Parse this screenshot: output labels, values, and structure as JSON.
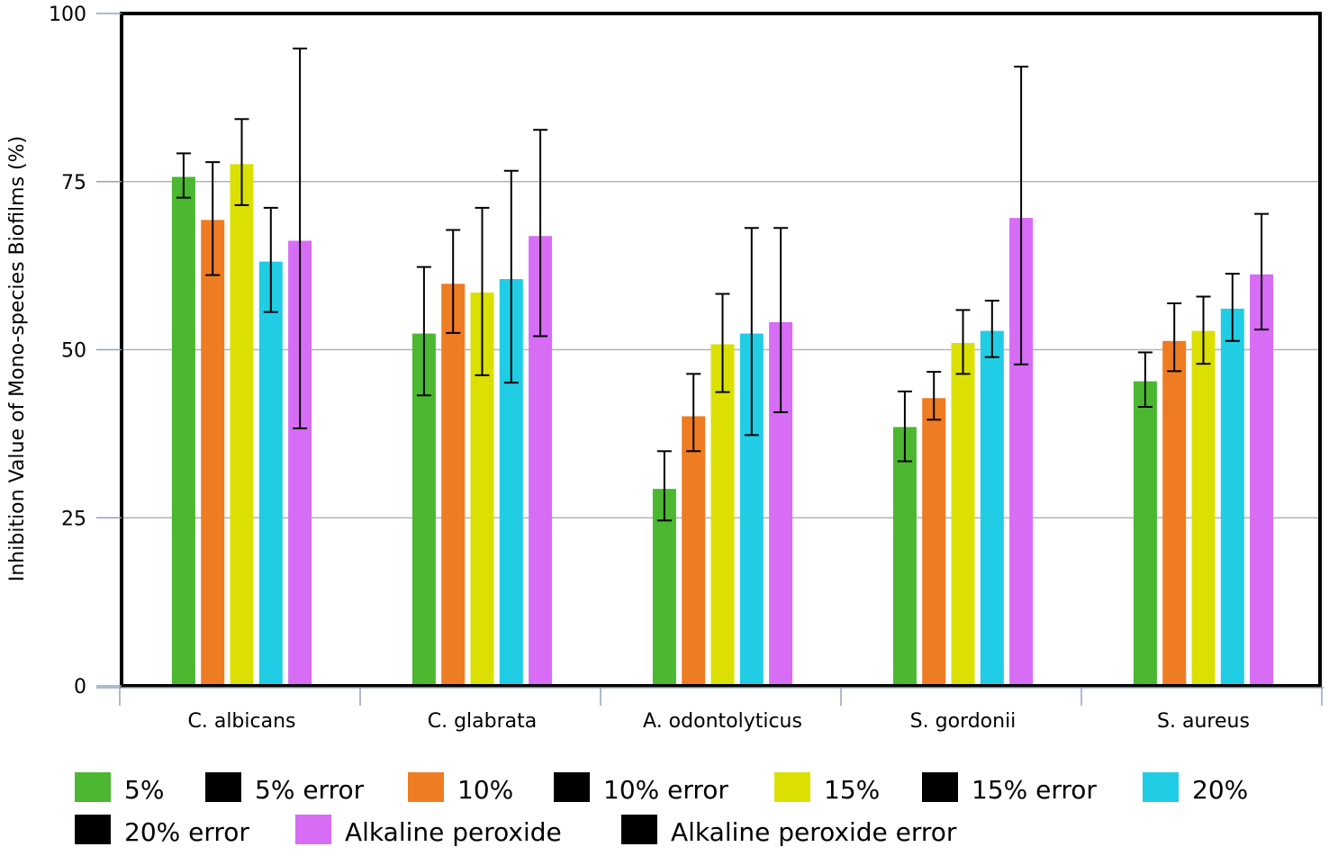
{
  "chart_data": {
    "type": "bar",
    "title": "",
    "xlabel": "",
    "ylabel": "Inhibition Value of Mono-species Biofilms (%)",
    "ylim": [
      0,
      100
    ],
    "yticks": [
      "0",
      "25",
      "50",
      "75",
      "100"
    ],
    "grid": "horizontal",
    "legend_position": "bottom",
    "categories": [
      "C. albicans",
      "C. glabrata",
      "A. odontolyticus",
      "S. gordonii",
      "S. aureus"
    ],
    "series": [
      {
        "name": "5%",
        "color": "#4CB731",
        "values": [
          75.7,
          52.4,
          29.3,
          38.5,
          45.3
        ],
        "error_low": [
          72.6,
          43.2,
          24.6,
          33.4,
          41.5
        ],
        "error_high": [
          79.2,
          62.3,
          34.9,
          43.8,
          49.6
        ]
      },
      {
        "name": "10%",
        "color": "#EE7C22",
        "values": [
          69.3,
          59.8,
          40.1,
          42.8,
          51.3
        ],
        "error_low": [
          61.1,
          52.5,
          34.9,
          39.6,
          46.8
        ],
        "error_high": [
          77.9,
          67.8,
          46.4,
          46.7,
          56.9
        ]
      },
      {
        "name": "15%",
        "color": "#DCE000",
        "values": [
          77.6,
          58.5,
          50.8,
          51.0,
          52.8
        ],
        "error_low": [
          71.5,
          46.2,
          43.7,
          46.4,
          47.9
        ],
        "error_high": [
          84.3,
          71.1,
          58.3,
          55.9,
          57.9
        ]
      },
      {
        "name": "20%",
        "color": "#21CDE5",
        "values": [
          63.1,
          60.5,
          52.4,
          52.8,
          56.1
        ],
        "error_low": [
          55.6,
          45.1,
          37.3,
          48.9,
          51.3
        ],
        "error_high": [
          71.1,
          76.6,
          68.1,
          57.3,
          61.3
        ]
      },
      {
        "name": "Alkaline peroxide",
        "color": "#D76DF5",
        "values": [
          66.2,
          66.9,
          54.1,
          69.6,
          61.2
        ],
        "error_low": [
          38.3,
          52.0,
          40.7,
          47.8,
          53.0
        ],
        "error_high": [
          94.8,
          82.7,
          68.1,
          92.1,
          70.2
        ]
      }
    ],
    "legend": [
      {
        "label": "5%",
        "color": "#4CB731"
      },
      {
        "label": "5% error",
        "color": "#000000"
      },
      {
        "label": "10%",
        "color": "#EE7C22"
      },
      {
        "label": "10% error",
        "color": "#000000"
      },
      {
        "label": "15%",
        "color": "#DCE000"
      },
      {
        "label": "15% error",
        "color": "#000000"
      },
      {
        "label": "20%",
        "color": "#21CDE5"
      },
      {
        "label": "20% error",
        "color": "#000000"
      },
      {
        "label": "Alkaline peroxide",
        "color": "#D76DF5"
      },
      {
        "label": "Alkaline peroxide error",
        "color": "#000000"
      }
    ]
  }
}
